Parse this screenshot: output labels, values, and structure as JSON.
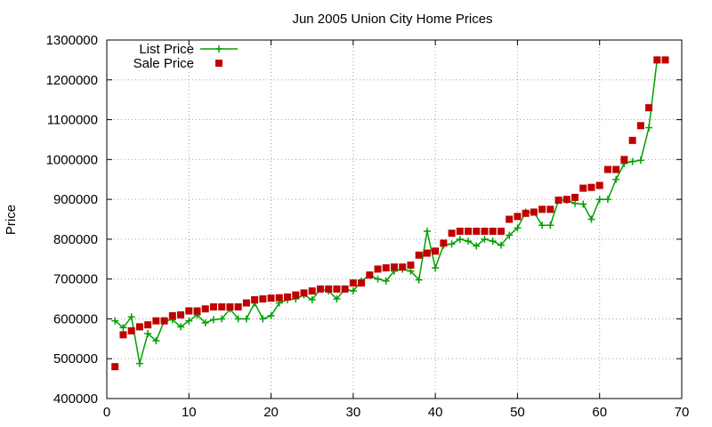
{
  "chart_data": {
    "type": "line",
    "title": "Jun 2005 Union City Home Prices",
    "xlabel": "",
    "ylabel": "Price",
    "xlim": [
      0,
      70
    ],
    "ylim": [
      400000,
      1300000
    ],
    "x_ticks": [
      "0",
      "10",
      "20",
      "30",
      "40",
      "50",
      "60",
      "70"
    ],
    "y_ticks": [
      "400000",
      "500000",
      "600000",
      "700000",
      "800000",
      "900000",
      "1000000",
      "1100000",
      "1200000",
      "1300000"
    ],
    "grid": true,
    "legend_position": "top-left",
    "series": [
      {
        "name": "List Price",
        "style": "line-points",
        "color": "#00a000",
        "marker": "plus",
        "points": [
          [
            1,
            595000
          ],
          [
            2,
            578000
          ],
          [
            3,
            605000
          ],
          [
            4,
            488000
          ],
          [
            5,
            563000
          ],
          [
            6,
            545000
          ],
          [
            7,
            595000
          ],
          [
            8,
            598000
          ],
          [
            9,
            580000
          ],
          [
            10,
            595000
          ],
          [
            11,
            610000
          ],
          [
            12,
            590000
          ],
          [
            13,
            598000
          ],
          [
            14,
            600000
          ],
          [
            15,
            625000
          ],
          [
            16,
            600000
          ],
          [
            17,
            600000
          ],
          [
            18,
            640000
          ],
          [
            19,
            600000
          ],
          [
            20,
            608000
          ],
          [
            21,
            640000
          ],
          [
            22,
            648000
          ],
          [
            23,
            650000
          ],
          [
            24,
            660000
          ],
          [
            25,
            648000
          ],
          [
            26,
            675000
          ],
          [
            27,
            670000
          ],
          [
            28,
            650000
          ],
          [
            29,
            675000
          ],
          [
            30,
            670000
          ],
          [
            31,
            695000
          ],
          [
            32,
            710000
          ],
          [
            33,
            700000
          ],
          [
            34,
            695000
          ],
          [
            35,
            720000
          ],
          [
            36,
            725000
          ],
          [
            37,
            720000
          ],
          [
            38,
            698000
          ],
          [
            39,
            820000
          ],
          [
            40,
            728000
          ],
          [
            41,
            785000
          ],
          [
            42,
            788000
          ],
          [
            43,
            800000
          ],
          [
            44,
            795000
          ],
          [
            45,
            783000
          ],
          [
            46,
            800000
          ],
          [
            47,
            795000
          ],
          [
            48,
            785000
          ],
          [
            49,
            810000
          ],
          [
            50,
            828000
          ],
          [
            51,
            868000
          ],
          [
            52,
            868000
          ],
          [
            53,
            835000
          ],
          [
            54,
            835000
          ],
          [
            55,
            898000
          ],
          [
            56,
            898000
          ],
          [
            57,
            890000
          ],
          [
            58,
            888000
          ],
          [
            59,
            850000
          ],
          [
            60,
            900000
          ],
          [
            61,
            900000
          ],
          [
            62,
            950000
          ],
          [
            63,
            990000
          ],
          [
            64,
            995000
          ],
          [
            65,
            998000
          ],
          [
            66,
            1080000
          ],
          [
            67,
            1250000
          ]
        ]
      },
      {
        "name": "Sale Price",
        "style": "points",
        "color": "#c00000",
        "marker": "square",
        "points": [
          [
            1,
            480000
          ],
          [
            2,
            560000
          ],
          [
            3,
            570000
          ],
          [
            4,
            580000
          ],
          [
            5,
            585000
          ],
          [
            6,
            595000
          ],
          [
            7,
            595000
          ],
          [
            8,
            608000
          ],
          [
            9,
            610000
          ],
          [
            10,
            620000
          ],
          [
            11,
            620000
          ],
          [
            12,
            625000
          ],
          [
            13,
            630000
          ],
          [
            14,
            630000
          ],
          [
            15,
            630000
          ],
          [
            16,
            630000
          ],
          [
            17,
            640000
          ],
          [
            18,
            648000
          ],
          [
            19,
            650000
          ],
          [
            20,
            652000
          ],
          [
            21,
            653000
          ],
          [
            22,
            655000
          ],
          [
            23,
            660000
          ],
          [
            24,
            665000
          ],
          [
            25,
            670000
          ],
          [
            26,
            675000
          ],
          [
            27,
            675000
          ],
          [
            28,
            675000
          ],
          [
            29,
            675000
          ],
          [
            30,
            690000
          ],
          [
            31,
            690000
          ],
          [
            32,
            710000
          ],
          [
            33,
            725000
          ],
          [
            34,
            728000
          ],
          [
            35,
            730000
          ],
          [
            36,
            730000
          ],
          [
            37,
            735000
          ],
          [
            38,
            760000
          ],
          [
            39,
            765000
          ],
          [
            40,
            770000
          ],
          [
            41,
            790000
          ],
          [
            42,
            815000
          ],
          [
            43,
            820000
          ],
          [
            44,
            820000
          ],
          [
            45,
            820000
          ],
          [
            46,
            820000
          ],
          [
            47,
            820000
          ],
          [
            48,
            820000
          ],
          [
            49,
            850000
          ],
          [
            50,
            857000
          ],
          [
            51,
            865000
          ],
          [
            52,
            868000
          ],
          [
            53,
            875000
          ],
          [
            54,
            875000
          ],
          [
            55,
            898000
          ],
          [
            56,
            900000
          ],
          [
            57,
            905000
          ],
          [
            58,
            928000
          ],
          [
            59,
            930000
          ],
          [
            60,
            935000
          ],
          [
            61,
            975000
          ],
          [
            62,
            975000
          ],
          [
            63,
            1000000
          ],
          [
            64,
            1048000
          ],
          [
            65,
            1085000
          ],
          [
            66,
            1130000
          ],
          [
            67,
            1250000
          ],
          [
            68,
            1250000
          ]
        ]
      }
    ]
  }
}
